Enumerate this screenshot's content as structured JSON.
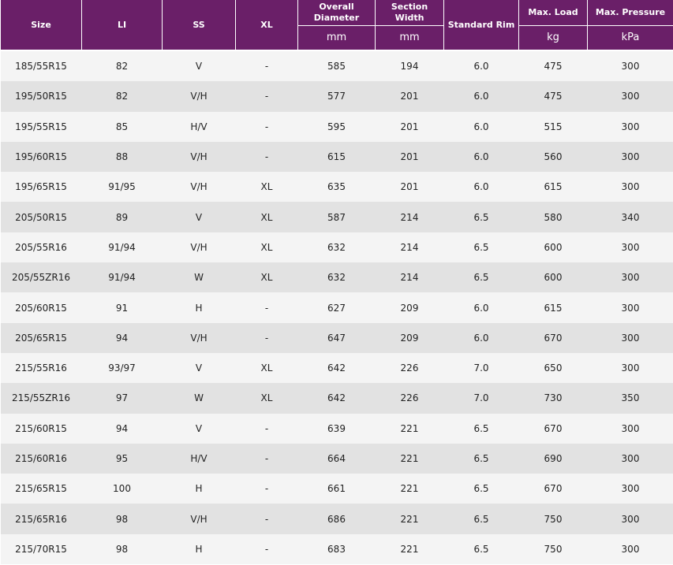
{
  "table": {
    "headers": [
      {
        "label": "Size"
      },
      {
        "label": "LI"
      },
      {
        "label": "SS"
      },
      {
        "label": "XL"
      },
      {
        "label": "Overall Diameter",
        "unit": "mm"
      },
      {
        "label": "Section Width",
        "unit": "mm"
      },
      {
        "label": "Standard Rim"
      },
      {
        "label": "Max. Load",
        "unit": "kg"
      },
      {
        "label": "Max. Pressure",
        "unit": "kPa"
      }
    ],
    "rows": [
      [
        "185/55R15",
        "82",
        "V",
        "-",
        "585",
        "194",
        "6.0",
        "475",
        "300"
      ],
      [
        "195/50R15",
        "82",
        "V/H",
        "-",
        "577",
        "201",
        "6.0",
        "475",
        "300"
      ],
      [
        "195/55R15",
        "85",
        "H/V",
        "-",
        "595",
        "201",
        "6.0",
        "515",
        "300"
      ],
      [
        "195/60R15",
        "88",
        "V/H",
        "-",
        "615",
        "201",
        "6.0",
        "560",
        "300"
      ],
      [
        "195/65R15",
        "91/95",
        "V/H",
        "XL",
        "635",
        "201",
        "6.0",
        "615",
        "300"
      ],
      [
        "205/50R15",
        "89",
        "V",
        "XL",
        "587",
        "214",
        "6.5",
        "580",
        "340"
      ],
      [
        "205/55R16",
        "91/94",
        "V/H",
        "XL",
        "632",
        "214",
        "6.5",
        "600",
        "300"
      ],
      [
        "205/55ZR16",
        "91/94",
        "W",
        "XL",
        "632",
        "214",
        "6.5",
        "600",
        "300"
      ],
      [
        "205/60R15",
        "91",
        "H",
        "-",
        "627",
        "209",
        "6.0",
        "615",
        "300"
      ],
      [
        "205/65R15",
        "94",
        "V/H",
        "-",
        "647",
        "209",
        "6.0",
        "670",
        "300"
      ],
      [
        "215/55R16",
        "93/97",
        "V",
        "XL",
        "642",
        "226",
        "7.0",
        "650",
        "300"
      ],
      [
        "215/55ZR16",
        "97",
        "W",
        "XL",
        "642",
        "226",
        "7.0",
        "730",
        "350"
      ],
      [
        "215/60R15",
        "94",
        "V",
        "-",
        "639",
        "221",
        "6.5",
        "670",
        "300"
      ],
      [
        "215/60R16",
        "95",
        "H/V",
        "-",
        "664",
        "221",
        "6.5",
        "690",
        "300"
      ],
      [
        "215/65R15",
        "100",
        "H",
        "-",
        "661",
        "221",
        "6.5",
        "670",
        "300"
      ],
      [
        "215/65R16",
        "98",
        "V/H",
        "-",
        "686",
        "221",
        "6.5",
        "750",
        "300"
      ],
      [
        "215/70R15",
        "98",
        "H",
        "-",
        "683",
        "221",
        "6.5",
        "750",
        "300"
      ]
    ]
  }
}
